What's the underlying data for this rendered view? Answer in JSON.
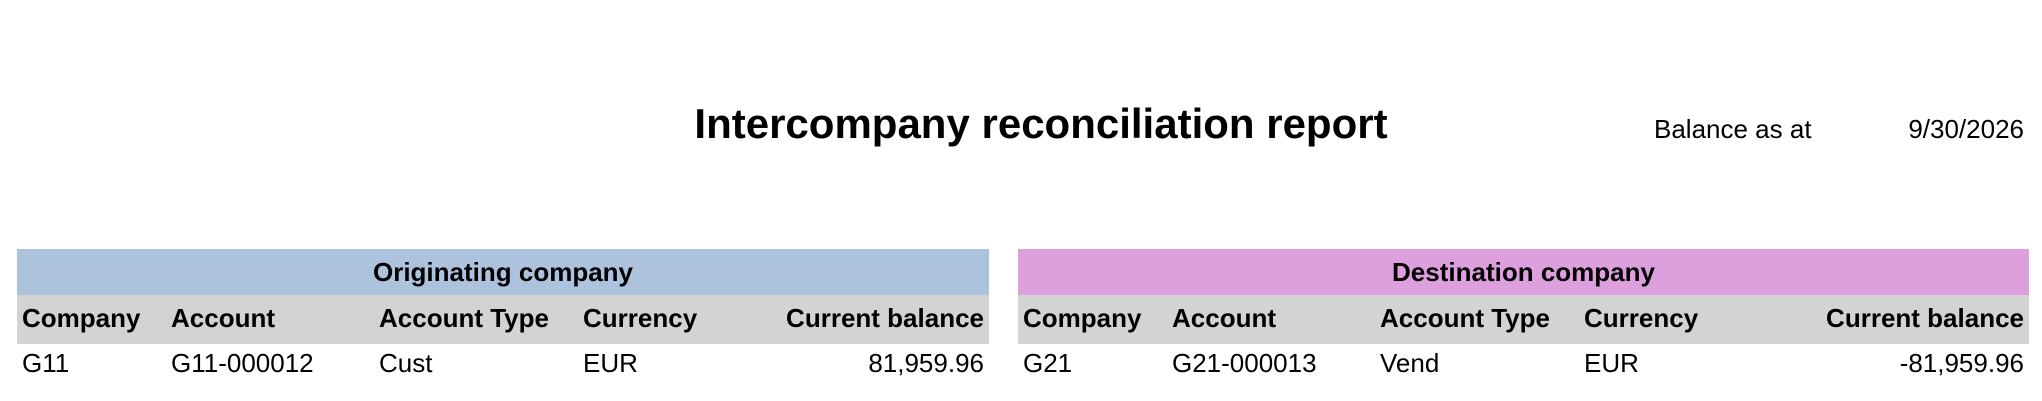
{
  "header": {
    "title": "Intercompany reconciliation report",
    "balance_label": "Balance as at",
    "balance_date": "9/30/2026"
  },
  "tables": [
    {
      "title": "Originating company",
      "columns": [
        "Company",
        "Account",
        "Account Type",
        "Currency",
        "Current balance"
      ],
      "rows": [
        [
          "G11",
          "G11-000012",
          "Cust",
          "EUR",
          "81,959.96"
        ]
      ]
    },
    {
      "title": "Destination company",
      "columns": [
        "Company",
        "Account",
        "Account Type",
        "Currency",
        "Current balance"
      ],
      "rows": [
        [
          "G21",
          "G21-000013",
          "Vend",
          "EUR",
          "-81,959.96"
        ]
      ]
    }
  ]
}
